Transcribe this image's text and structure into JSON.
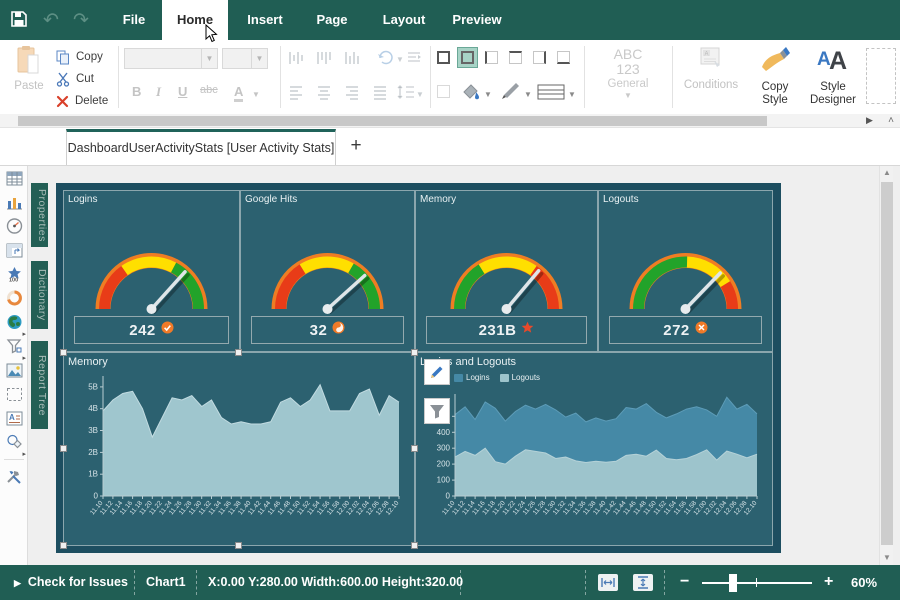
{
  "menu": {
    "items": [
      {
        "label": "File"
      },
      {
        "label": "Home",
        "active": true
      },
      {
        "label": "Insert"
      },
      {
        "label": "Page"
      },
      {
        "label": "Layout"
      },
      {
        "label": "Preview"
      }
    ]
  },
  "ribbon": {
    "paste_label": "Paste",
    "copy_label": "Copy",
    "cut_label": "Cut",
    "delete_label": "Delete",
    "bold": "B",
    "italic": "I",
    "underline": "U",
    "strike": "abc",
    "fontcolor": "A",
    "number_format": {
      "line1": "ABC",
      "line2": "123",
      "line3": "General"
    },
    "conditions_label": "Conditions",
    "copy_style_label1": "Copy",
    "copy_style_label2": "Style",
    "style_designer_label1": "Style",
    "style_designer_label2": "Designer"
  },
  "tabbar": {
    "page_tab_label": "DashboardUserActivityStats [User Activity Stats]",
    "add_label": "+"
  },
  "toolbox": {
    "items": [
      {
        "name": "table-icon"
      },
      {
        "name": "chart-icon"
      },
      {
        "name": "gauge-icon"
      },
      {
        "name": "pivot-table-icon"
      },
      {
        "name": "indicator-icon"
      },
      {
        "name": "progress-icon"
      },
      {
        "name": "map-icon",
        "arrow": true
      },
      {
        "name": "filter-icon",
        "arrow": true
      },
      {
        "name": "image-icon"
      },
      {
        "name": "panel-icon"
      },
      {
        "name": "text-icon"
      },
      {
        "name": "shape-icon",
        "arrow": true
      },
      {
        "divider": true
      },
      {
        "name": "tools-icon"
      }
    ]
  },
  "side_panels": [
    "Properties",
    "Dictionary",
    "Report Tree"
  ],
  "dashboard": {
    "gauges": [
      {
        "title": "Logins",
        "value": "242",
        "icon": "check-circle",
        "segments": [
          {
            "from": 180,
            "to": 125,
            "color": "#e83c18"
          },
          {
            "from": 125,
            "to": 62,
            "color": "#ffdf00"
          },
          {
            "from": 62,
            "to": 0,
            "color": "#22a32a"
          }
        ],
        "needle_deg": 48
      },
      {
        "title": "Google Hits",
        "value": "32",
        "icon": "swirl-circle",
        "segments": [
          {
            "from": 180,
            "to": 122,
            "color": "#e83c18"
          },
          {
            "from": 122,
            "to": 60,
            "color": "#ffdf00"
          },
          {
            "from": 60,
            "to": 0,
            "color": "#22a32a"
          }
        ],
        "needle_deg": 42
      },
      {
        "title": "Memory",
        "value": "231B",
        "icon": "star",
        "segments": [
          {
            "from": 180,
            "to": 122,
            "color": "#22a32a"
          },
          {
            "from": 122,
            "to": 55,
            "color": "#ffdf00"
          },
          {
            "from": 55,
            "to": 0,
            "color": "#e83c18"
          }
        ],
        "needle_deg": 50
      },
      {
        "title": "Logouts",
        "value": "272",
        "icon": "cross-circle",
        "segments": [
          {
            "from": 180,
            "to": 88,
            "color": "#22a32a"
          },
          {
            "from": 88,
            "to": 32,
            "color": "#ffdf00"
          },
          {
            "from": 32,
            "to": 0,
            "color": "#e83c18"
          }
        ],
        "needle_deg": 46
      }
    ]
  },
  "chart_data": [
    {
      "type": "area",
      "title": "Memory",
      "x": [
        "11.10",
        "11.12",
        "11.14",
        "11.16",
        "11.18",
        "11.20",
        "11.22",
        "11.24",
        "11.26",
        "11.28",
        "11.30",
        "11.32",
        "11.34",
        "11.36",
        "11.38",
        "11.40",
        "11.42",
        "11.44",
        "11.46",
        "11.48",
        "11.50",
        "11.52",
        "11.54",
        "11.56",
        "11.58",
        "12.00",
        "12.02",
        "12.04",
        "12.06",
        "12.08",
        "12.10"
      ],
      "series": [
        {
          "name": "Memory",
          "color": "#9fc6ce",
          "edge": "#c2dbe1",
          "values": [
            3.9,
            4.4,
            4.7,
            4.8,
            4.0,
            2.7,
            3.6,
            4.5,
            4.4,
            4.6,
            4.1,
            4.4,
            3.6,
            3.3,
            3.4,
            3.3,
            3.3,
            3.4,
            4.3,
            4.5,
            4.1,
            4.4,
            5.1,
            3.9,
            3.9,
            3.9,
            4.7,
            4.9,
            3.7,
            4.6,
            4.3
          ]
        }
      ],
      "ylim": [
        0,
        5.5
      ],
      "yticks": [
        {
          "v": 0,
          "l": "0"
        },
        {
          "v": 1,
          "l": "1B"
        },
        {
          "v": 2,
          "l": "2B"
        },
        {
          "v": 3,
          "l": "3B"
        },
        {
          "v": 4,
          "l": "4B"
        },
        {
          "v": 5,
          "l": "5B"
        }
      ],
      "margins": {
        "l": 36,
        "r": 12,
        "t": 6,
        "b": 46
      },
      "legend": false
    },
    {
      "type": "area",
      "title": "Logins and Logouts",
      "x": [
        "11.10",
        "11.12",
        "11.14",
        "11.16",
        "11.18",
        "11.20",
        "11.22",
        "11.24",
        "11.26",
        "11.28",
        "11.30",
        "11.32",
        "11.34",
        "11.36",
        "11.38",
        "11.40",
        "11.42",
        "11.44",
        "11.46",
        "11.48",
        "11.50",
        "11.52",
        "11.54",
        "11.56",
        "11.58",
        "12.00",
        "12.02",
        "12.04",
        "12.06",
        "12.08",
        "12.10"
      ],
      "series": [
        {
          "name": "Logins",
          "color": "#4589a6",
          "edge": "#5d9cb8",
          "values": [
            510,
            560,
            480,
            590,
            550,
            470,
            530,
            570,
            545,
            575,
            540,
            495,
            520,
            465,
            490,
            470,
            485,
            555,
            545,
            580,
            525,
            490,
            515,
            545,
            560,
            540,
            500,
            620,
            545,
            575,
            515
          ]
        },
        {
          "name": "Logouts",
          "color": "#9dc4cc",
          "edge": "#b5d2d8",
          "values": [
            245,
            280,
            255,
            300,
            215,
            200,
            250,
            290,
            280,
            270,
            235,
            245,
            220,
            210,
            218,
            212,
            218,
            255,
            262,
            250,
            288,
            235,
            228,
            235,
            260,
            290,
            225,
            282,
            262,
            240,
            262
          ]
        }
      ],
      "ylim": [
        0,
        640
      ],
      "yticks": [
        {
          "v": 0,
          "l": "0"
        },
        {
          "v": 100,
          "l": "100"
        },
        {
          "v": 200,
          "l": "200"
        },
        {
          "v": 300,
          "l": "300"
        },
        {
          "v": 400,
          "l": "400"
        },
        {
          "v": 500,
          "l": "500"
        }
      ],
      "margins": {
        "l": 36,
        "r": 12,
        "t": 24,
        "b": 46
      },
      "legend": true
    }
  ],
  "statusbar": {
    "check_issues": "Check for Issues",
    "selected_component": "Chart1",
    "coordinates": "X:0.00 Y:280.00 Width:600.00 Height:320.00",
    "zoom_out": "−",
    "zoom_in": "+",
    "zoom_level": "60%"
  },
  "colors": {
    "accent_teal": "#205e54",
    "page_background": "#1d4e60",
    "widget_background": "#2c6170",
    "gauge_rim": "#ef7d23"
  }
}
